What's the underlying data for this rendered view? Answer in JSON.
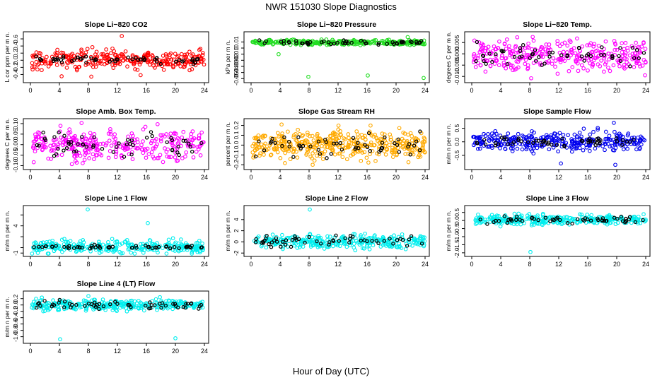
{
  "page": {
    "title": "NWR  151030  Slope Diagnostics",
    "xlabel": "Hour of Day (UTC)"
  },
  "colors": {
    "overlay": "#000000"
  },
  "chart_data": [
    {
      "type": "scatter",
      "title": "Slope Li−820 CO2",
      "ylabel": "L cor ppm per m n.",
      "xlim": [
        0,
        24
      ],
      "xticks": [
        "0",
        "4",
        "8",
        "12",
        "16",
        "20",
        "24"
      ],
      "ylim": [
        -0.55,
        0.72
      ],
      "yticks": [
        -0.4,
        -0.2,
        0.0,
        0.2,
        0.4,
        0.6
      ],
      "ytick_labels": [
        "-0.4",
        "-0.2",
        "0.0",
        "0.2",
        "0.4",
        "0.6"
      ],
      "color": "#ff0000",
      "baseline": 0.02,
      "spread": 0.13,
      "overlay_spread": 0.05,
      "n_points": 300,
      "n_overlay": 55,
      "outliers": [
        {
          "x": 12.6,
          "y": 0.68
        },
        {
          "x": 8.4,
          "y": -0.46
        },
        {
          "x": 4.3,
          "y": -0.45
        },
        {
          "x": 15.2,
          "y": -0.42
        }
      ]
    },
    {
      "type": "scatter",
      "title": "Slope Li−820 Pressure",
      "ylabel": "kPa per m n.",
      "xlim": [
        0,
        24
      ],
      "xticks": [
        "0",
        "4",
        "8",
        "12",
        "16",
        "20",
        "24"
      ],
      "ylim": [
        -0.052,
        0.022
      ],
      "yticks": [
        -0.05,
        -0.04,
        -0.03,
        -0.02,
        -0.01,
        0.0,
        0.01
      ],
      "ytick_labels": [
        "-0.05",
        "-0.04",
        "-0.03",
        "-0.02",
        "-0.01",
        "0",
        "0.01"
      ],
      "color": "#22dd22",
      "baseline": 0.009,
      "spread": 0.002,
      "overlay_spread": 0.0015,
      "n_points": 320,
      "n_overlay": 55,
      "outliers": [
        {
          "x": 7.9,
          "y": -0.047
        },
        {
          "x": 16.1,
          "y": -0.045
        },
        {
          "x": 23.8,
          "y": -0.049
        },
        {
          "x": 3.8,
          "y": -0.01
        },
        {
          "x": 21.6,
          "y": 0.018
        }
      ]
    },
    {
      "type": "scatter",
      "title": "Slope Li−820 Temp.",
      "ylabel": "degrees C per m n.",
      "xlim": [
        0,
        24
      ],
      "xticks": [
        "0",
        "4",
        "8",
        "12",
        "16",
        "20",
        "24"
      ],
      "ylim": [
        -0.0115,
        0.0085
      ],
      "yticks": [
        -0.01,
        -0.005,
        0.0,
        0.005
      ],
      "ytick_labels": [
        "-0.010",
        "-0.005",
        "0.000",
        "0.005"
      ],
      "color": "#ff00ff",
      "baseline": -0.0005,
      "spread": 0.0035,
      "overlay_spread": 0.0025,
      "n_points": 320,
      "n_overlay": 55,
      "outliers": [
        {
          "x": 8.2,
          "y": -0.0108
        },
        {
          "x": 23.9,
          "y": -0.0095
        }
      ]
    },
    {
      "type": "scatter",
      "title": "Slope Amb. Box Temp.",
      "ylabel": "degrees C per m n.",
      "xlim": [
        0,
        24
      ],
      "xticks": [
        "0",
        "4",
        "8",
        "12",
        "16",
        "20",
        "24"
      ],
      "ylim": [
        -0.105,
        0.11
      ],
      "yticks": [
        -0.1,
        -0.05,
        0.0,
        0.05,
        0.1
      ],
      "ytick_labels": [
        "-0.10",
        "-0.05",
        "0.00",
        "0.05",
        "0.10"
      ],
      "color": "#ff00ff",
      "baseline": 0.0,
      "spread": 0.035,
      "overlay_spread": 0.03,
      "n_points": 300,
      "n_overlay": 55,
      "outliers": []
    },
    {
      "type": "scatter",
      "title": "Slope Gas Stream RH",
      "ylabel": "percent per m n.",
      "xlim": [
        0,
        24
      ],
      "xticks": [
        "0",
        "4",
        "8",
        "12",
        "16",
        "20",
        "24"
      ],
      "ylim": [
        -0.22,
        0.24
      ],
      "yticks": [
        -0.2,
        -0.1,
        0.0,
        0.1,
        0.2
      ],
      "ytick_labels": [
        "-0.2",
        "-0.1",
        "0.0",
        "0.1",
        "0.2"
      ],
      "color": "#ffaa00",
      "baseline": 0.0,
      "spread": 0.07,
      "overlay_spread": 0.06,
      "n_points": 420,
      "n_overlay": 55,
      "outliers": [
        {
          "x": 4.2,
          "y": 0.21
        },
        {
          "x": 8.5,
          "y": -0.2
        }
      ]
    },
    {
      "type": "scatter",
      "title": "Slope Sample Flow",
      "ylabel": "m/m n per m n.",
      "xlim": [
        0,
        24
      ],
      "xticks": [
        "0",
        "4",
        "8",
        "12",
        "16",
        "20",
        "24"
      ],
      "ylim": [
        -0.92,
        0.75
      ],
      "yticks": [
        -0.5,
        0.0,
        0.5
      ],
      "ytick_labels": [
        "-0.5",
        "0.0",
        "0.5"
      ],
      "color": "#0000ee",
      "baseline": 0.02,
      "spread": 0.17,
      "overlay_spread": 0.1,
      "n_points": 320,
      "n_overlay": 55,
      "outliers": [
        {
          "x": 19.8,
          "y": -0.85
        },
        {
          "x": 12.3,
          "y": -0.8
        },
        {
          "x": 19.6,
          "y": 0.7
        }
      ]
    },
    {
      "type": "scatter",
      "title": "Slope Line 1 Flow",
      "ylabel": "m/m n per m n.",
      "xlim": [
        0,
        24
      ],
      "xticks": [
        "0",
        "4",
        "8",
        "12",
        "16",
        "20",
        "24"
      ],
      "ylim": [
        -1.1,
        7.2
      ],
      "yticks": [
        -1,
        0,
        2,
        4,
        6
      ],
      "ytick_labels": [
        "-1",
        "",
        "",
        "4",
        ""
      ],
      "color": "#00eeee",
      "baseline": 0.1,
      "spread": 0.6,
      "overlay_spread": 0.15,
      "n_points": 300,
      "n_overlay": 55,
      "outliers": [
        {
          "x": 7.9,
          "y": 7.0
        },
        {
          "x": 16.2,
          "y": 4.5
        }
      ]
    },
    {
      "type": "scatter",
      "title": "Slope Line 2 Flow",
      "ylabel": "m/m n per m n.",
      "xlim": [
        0,
        24
      ],
      "xticks": [
        "0",
        "4",
        "8",
        "12",
        "16",
        "20",
        "24"
      ],
      "ylim": [
        -2.1,
        6.0
      ],
      "yticks": [
        -2,
        0,
        2,
        4
      ],
      "ytick_labels": [
        "-2",
        "0",
        "2",
        "4"
      ],
      "color": "#00eeee",
      "baseline": 0.1,
      "spread": 0.6,
      "overlay_spread": 0.6,
      "n_points": 300,
      "n_overlay": 55,
      "outliers": [
        {
          "x": 8.1,
          "y": 5.8
        }
      ]
    },
    {
      "type": "scatter",
      "title": "Slope Line 3 Flow",
      "ylabel": "m/m n per m n.",
      "xlim": [
        0,
        24
      ],
      "xticks": [
        "0",
        "4",
        "8",
        "12",
        "16",
        "20",
        "24"
      ],
      "ylim": [
        -2.05,
        0.75
      ],
      "yticks": [
        -2.0,
        -1.5,
        -1.0,
        -0.5,
        0.0,
        0.5
      ],
      "ytick_labels": [
        "-2.0",
        "-1.5",
        "-1.0",
        "-0.5",
        "0.0",
        "0.5"
      ],
      "color": "#00eeee",
      "baseline": 0.05,
      "spread": 0.15,
      "overlay_spread": 0.12,
      "n_points": 320,
      "n_overlay": 55,
      "outliers": [
        {
          "x": 8.1,
          "y": -1.95
        }
      ]
    },
    {
      "type": "scatter",
      "title": "Slope Line 4 (LT) Flow",
      "ylabel": "m/m n per m n.",
      "xlim": [
        0,
        24
      ],
      "xticks": [
        "0",
        "4",
        "8",
        "12",
        "16",
        "20",
        "24"
      ],
      "ylim": [
        -1.12,
        0.35
      ],
      "yticks": [
        -1.0,
        -0.8,
        -0.6,
        -0.4,
        -0.2,
        0.0,
        0.2
      ],
      "ytick_labels": [
        "-1.0",
        "-0.8",
        "-0.6",
        "-0.4",
        "-0.2",
        "0.0",
        "0.2"
      ],
      "color": "#00eeee",
      "baseline": 0.0,
      "spread": 0.08,
      "overlay_spread": 0.07,
      "n_points": 320,
      "n_overlay": 55,
      "outliers": [
        {
          "x": 4.1,
          "y": -1.08
        },
        {
          "x": 20.0,
          "y": -1.05
        },
        {
          "x": 8.0,
          "y": 0.28
        }
      ]
    }
  ]
}
